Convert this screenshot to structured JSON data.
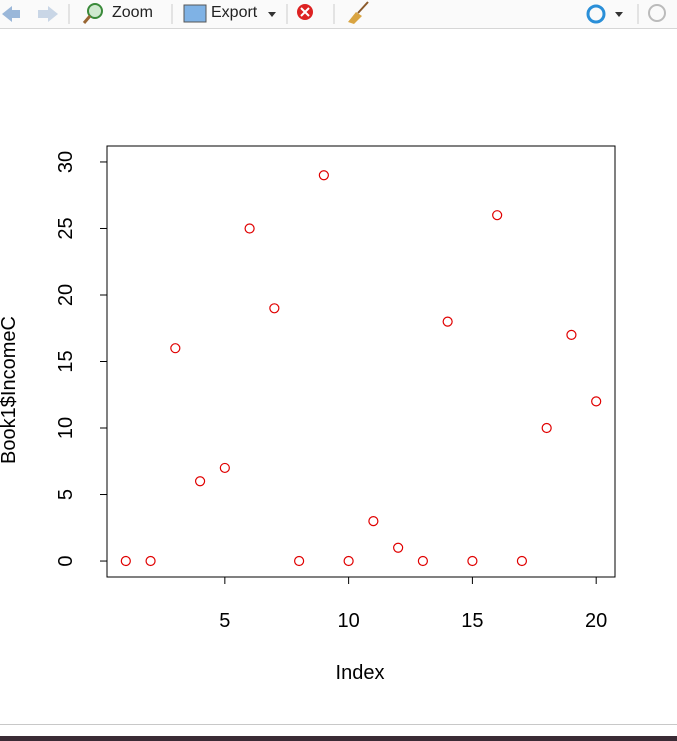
{
  "toolbar": {
    "zoom": "Zoom",
    "export": "Export"
  },
  "chart_data": {
    "type": "scatter",
    "x_label": "Index",
    "y_label": "Book1$IncomeC",
    "x": [
      1,
      2,
      3,
      4,
      5,
      6,
      7,
      8,
      9,
      10,
      11,
      12,
      13,
      14,
      15,
      16,
      17,
      18,
      19,
      20
    ],
    "values": [
      0,
      0,
      16,
      6,
      7,
      25,
      19,
      0,
      29,
      0,
      3,
      1,
      0,
      18,
      0,
      26,
      0,
      10,
      17,
      12
    ],
    "color": "#e00000",
    "xlim": [
      0.24,
      20.76
    ],
    "ylim": [
      -1.2,
      31.2
    ],
    "xticks": [
      5,
      10,
      15,
      20
    ],
    "yticks": [
      0,
      5,
      10,
      15,
      20,
      25,
      30
    ]
  }
}
